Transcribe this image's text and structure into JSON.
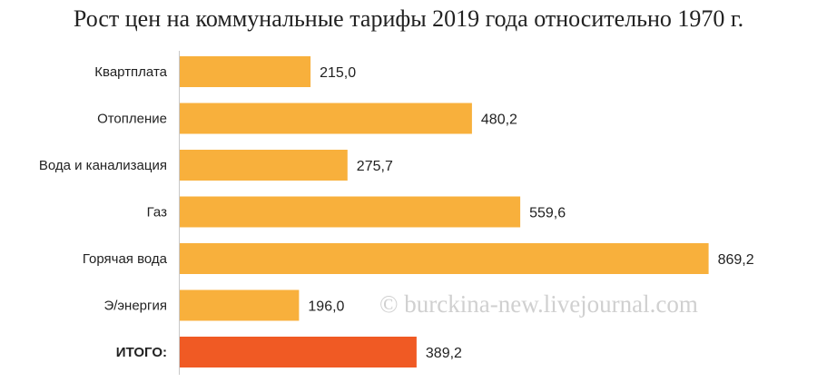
{
  "chart_data": {
    "type": "bar",
    "orientation": "horizontal",
    "title": "Рост цен на коммунальные тарифы 2019 года относительно 1970 г.",
    "categories": [
      "Квартплата",
      "Отопление",
      "Вода и канализация",
      "Газ",
      "Горячая вода",
      "Э/энергия",
      "ИТОГО:"
    ],
    "values": [
      215.0,
      480.2,
      275.7,
      559.6,
      869.2,
      196.0,
      389.2
    ],
    "value_labels": [
      "215,0",
      "480,2",
      "275,7",
      "559,6",
      "869,2",
      "196,0",
      "389,2"
    ],
    "highlight_index": 6,
    "xlim": [
      0,
      925
    ],
    "xlabel": "",
    "ylabel": "",
    "grid": false,
    "legend": "none",
    "colors": {
      "bar": "#F8B03C",
      "highlight": "#F05A24",
      "axis": "#C8C8C8"
    }
  },
  "watermark": "© burckina-new.livejournal.com"
}
